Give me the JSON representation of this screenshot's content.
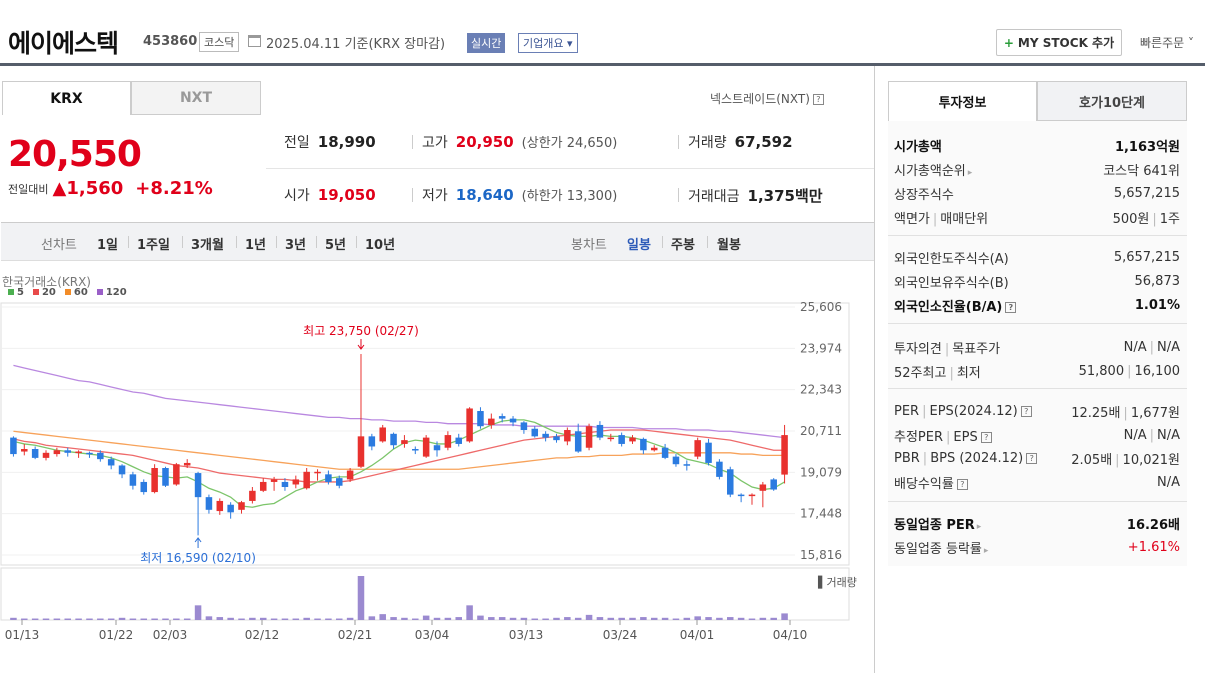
{
  "header": {
    "stock_name": "에이에스텍",
    "stock_code": "453860",
    "market": "코스닥",
    "date_text": "2025.04.11  기준(KRX 장마감)",
    "realtime": "실시간",
    "company_overview": "기업개요 ▾",
    "mystock": "MY STOCK 추가",
    "mystock_plus": "+",
    "quick_order": "빠른주문 ˅"
  },
  "tabs": {
    "krx": "KRX",
    "nxt": "NXT"
  },
  "nextrade": "넥스트레이드(NXT)",
  "price": {
    "current": "20,550",
    "change_label": "전일대비",
    "change_amount": "▲1,560",
    "change_rate": "+8.21%"
  },
  "quotes": {
    "prev_label": "전일",
    "prev_val": "18,990",
    "open_label": "시가",
    "open_val": "19,050",
    "high_label": "고가",
    "high_val": "20,950",
    "upper_limit": "(상한가 24,650)",
    "low_label": "저가",
    "low_val": "18,640",
    "lower_limit": "(하한가 13,300)",
    "volume_label": "거래량",
    "volume_val": "67,592",
    "amount_label": "거래대금",
    "amount_val": "1,375",
    "amount_unit": "백만"
  },
  "toolbar": {
    "line_chart": "선차트",
    "periods": [
      "1일",
      "1주일",
      "3개월",
      "1년",
      "3년",
      "5년",
      "10년"
    ],
    "candle_chart": "봉차트",
    "candles": [
      "일봉",
      "주봉",
      "월봉"
    ]
  },
  "chart_source": "한국거래소(KRX)",
  "legend": [
    {
      "label": "5",
      "color": "#4caf50"
    },
    {
      "label": "20",
      "color": "#e84a4a"
    },
    {
      "label": "60",
      "color": "#f28c28"
    },
    {
      "label": "120",
      "color": "#9a5fc8"
    }
  ],
  "chart_data": {
    "type": "candlestick",
    "y_ticks": [
      "25,606",
      "23,974",
      "22,343",
      "20,711",
      "19,079",
      "17,448",
      "15,816"
    ],
    "ylim": [
      15816,
      25606
    ],
    "x_ticks": [
      "01/13",
      "01/22",
      "02/03",
      "02/12",
      "02/21",
      "03/04",
      "03/13",
      "03/24",
      "04/01",
      "04/10"
    ],
    "annotations": {
      "high": "최고 23,750 (02/27)",
      "low": "최저 16,590 (02/10)"
    },
    "volume_label": "거래량",
    "candles": [
      [
        20450,
        19800,
        20500,
        19700
      ],
      [
        19900,
        20000,
        20200,
        19750
      ],
      [
        20000,
        19650,
        20100,
        19600
      ],
      [
        19650,
        19850,
        19950,
        19550
      ],
      [
        19800,
        19950,
        20050,
        19700
      ],
      [
        19950,
        19850,
        20050,
        19700
      ],
      [
        19850,
        19900,
        19950,
        19650
      ],
      [
        19850,
        19800,
        19900,
        19650
      ],
      [
        19850,
        19600,
        19950,
        19500
      ],
      [
        19600,
        19350,
        19700,
        19200
      ],
      [
        19350,
        19000,
        19400,
        18850
      ],
      [
        19000,
        18550,
        19100,
        18400
      ],
      [
        18700,
        18300,
        18800,
        18200
      ],
      [
        18300,
        19250,
        19400,
        18250
      ],
      [
        19250,
        18550,
        19300,
        18500
      ],
      [
        18600,
        19400,
        19450,
        18550
      ],
      [
        19350,
        19450,
        19600,
        19250
      ],
      [
        19050,
        18100,
        19100,
        16590
      ],
      [
        18100,
        17600,
        18200,
        17450
      ],
      [
        17550,
        17950,
        18050,
        17400
      ],
      [
        17800,
        17500,
        17900,
        17250
      ],
      [
        17600,
        17900,
        17950,
        17450
      ],
      [
        17950,
        18350,
        18500,
        17850
      ],
      [
        18350,
        18700,
        18850,
        18300
      ],
      [
        18700,
        18800,
        18900,
        18350
      ],
      [
        18700,
        18500,
        18850,
        18350
      ],
      [
        18600,
        18800,
        18950,
        18450
      ],
      [
        18450,
        19100,
        19250,
        18400
      ],
      [
        19050,
        19100,
        19200,
        18750
      ],
      [
        19000,
        18700,
        19150,
        18600
      ],
      [
        18850,
        18550,
        18950,
        18450
      ],
      [
        18800,
        19150,
        19250,
        18700
      ],
      [
        19300,
        20500,
        23750,
        19250
      ],
      [
        20500,
        20100,
        20600,
        19950
      ],
      [
        20300,
        20850,
        20950,
        20250
      ],
      [
        20600,
        20150,
        20650,
        20000
      ],
      [
        20200,
        20350,
        20550,
        20050
      ],
      [
        20000,
        19950,
        20100,
        19800
      ],
      [
        19700,
        20450,
        20550,
        19650
      ],
      [
        20150,
        19950,
        20300,
        19700
      ],
      [
        20050,
        20550,
        20700,
        19950
      ],
      [
        20450,
        20200,
        20600,
        20100
      ],
      [
        20300,
        21600,
        21650,
        20250
      ],
      [
        21500,
        20900,
        21650,
        20800
      ],
      [
        20950,
        21200,
        21400,
        20800
      ],
      [
        21300,
        21200,
        21400,
        21050
      ],
      [
        21200,
        21050,
        21300,
        20900
      ],
      [
        21050,
        20750,
        21100,
        20600
      ],
      [
        20800,
        20500,
        20900,
        20450
      ],
      [
        20600,
        20450,
        20700,
        20300
      ],
      [
        20500,
        20350,
        20600,
        20250
      ],
      [
        20300,
        20750,
        20850,
        20150
      ],
      [
        20700,
        19900,
        21000,
        19850
      ],
      [
        20050,
        20900,
        21000,
        19950
      ],
      [
        20950,
        20450,
        21100,
        20350
      ],
      [
        20400,
        20450,
        20600,
        20300
      ],
      [
        20550,
        20200,
        20650,
        20100
      ],
      [
        20300,
        20450,
        20550,
        20200
      ],
      [
        20400,
        19950,
        20450,
        19800
      ],
      [
        19950,
        20050,
        20150,
        19900
      ],
      [
        20050,
        19650,
        20200,
        19600
      ],
      [
        19700,
        19400,
        19800,
        19300
      ],
      [
        19400,
        19350,
        19550,
        19150
      ],
      [
        19700,
        20350,
        20450,
        19600
      ],
      [
        20250,
        19450,
        20400,
        19350
      ],
      [
        19500,
        18900,
        19600,
        18800
      ],
      [
        19200,
        18200,
        19300,
        18100
      ],
      [
        18200,
        18150,
        18250,
        17900
      ],
      [
        18150,
        18200,
        18250,
        17800
      ],
      [
        18350,
        18600,
        18700,
        17700
      ],
      [
        18800,
        18400,
        18850,
        18350
      ],
      [
        18990,
        20550,
        20950,
        18640
      ]
    ],
    "volumes": [
      3,
      2,
      2,
      2,
      2,
      2,
      2,
      2,
      2,
      2,
      3,
      2,
      2,
      2,
      2,
      2,
      2,
      20,
      5,
      4,
      3,
      2,
      3,
      3,
      2,
      2,
      2,
      3,
      2,
      2,
      2,
      3,
      60,
      5,
      8,
      4,
      3,
      2,
      6,
      3,
      3,
      4,
      20,
      6,
      4,
      4,
      3,
      3,
      2,
      2,
      3,
      4,
      3,
      7,
      4,
      3,
      3,
      3,
      4,
      3,
      3,
      2,
      3,
      5,
      4,
      3,
      4,
      3,
      2,
      3,
      3,
      9
    ],
    "ma5": [
      20300,
      20200,
      20150,
      20050,
      19950,
      19900,
      19850,
      19800,
      19750,
      19650,
      19500,
      19300,
      19100,
      18950,
      18900,
      18850,
      18900,
      18700,
      18450,
      18300,
      18100,
      17750,
      17700,
      17800,
      17850,
      18100,
      18350,
      18500,
      18700,
      18850,
      18900,
      18900,
      19100,
      19350,
      19650,
      20000,
      20250,
      20350,
      20300,
      20200,
      20200,
      20350,
      20550,
      20750,
      20950,
      21100,
      21150,
      21150,
      21050,
      20850,
      20650,
      20550,
      20500,
      20500,
      20550,
      20500,
      20500,
      20450,
      20350,
      20200,
      20050,
      19850,
      19600,
      19500,
      19400,
      19200,
      19050,
      18750,
      18500,
      18400,
      18450,
      18700
    ],
    "ma20": [
      20400,
      20300,
      20250,
      20150,
      20100,
      20050,
      20000,
      19950,
      19900,
      19850,
      19800,
      19750,
      19650,
      19550,
      19450,
      19350,
      19300,
      19250,
      19150,
      19050,
      19000,
      18950,
      18900,
      18850,
      18800,
      18800,
      18750,
      18700,
      18700,
      18700,
      18700,
      18750,
      18850,
      18950,
      19050,
      19150,
      19250,
      19350,
      19450,
      19550,
      19650,
      19750,
      19850,
      19950,
      20050,
      20150,
      20250,
      20350,
      20400,
      20450,
      20500,
      20550,
      20600,
      20650,
      20700,
      20750,
      20750,
      20750,
      20750,
      20700,
      20650,
      20600,
      20550,
      20500,
      20450,
      20400,
      20350,
      20250,
      20150,
      20050,
      19950,
      19950
    ],
    "ma60": [
      20700,
      20650,
      20600,
      20550,
      20500,
      20450,
      20400,
      20350,
      20300,
      20250,
      20200,
      20150,
      20100,
      20050,
      20000,
      19950,
      19900,
      19850,
      19800,
      19750,
      19700,
      19650,
      19600,
      19550,
      19500,
      19450,
      19400,
      19350,
      19300,
      19250,
      19200,
      19200,
      19200,
      19200,
      19200,
      19200,
      19200,
      19200,
      19200,
      19200,
      19200,
      19200,
      19250,
      19300,
      19350,
      19400,
      19450,
      19500,
      19550,
      19600,
      19650,
      19650,
      19700,
      19700,
      19750,
      19750,
      19750,
      19800,
      19800,
      19800,
      19850,
      19850,
      19850,
      19850,
      19850,
      19850,
      19850,
      19800,
      19800,
      19750,
      19750,
      19750
    ],
    "ma120": [
      23300,
      23200,
      23100,
      23000,
      22900,
      22800,
      22700,
      22650,
      22550,
      22450,
      22350,
      22250,
      22200,
      22100,
      22000,
      21950,
      21900,
      21850,
      21800,
      21750,
      21700,
      21650,
      21600,
      21550,
      21500,
      21450,
      21400,
      21350,
      21300,
      21250,
      21250,
      21200,
      21200,
      21150,
      21150,
      21100,
      21100,
      21100,
      21050,
      21050,
      21000,
      21000,
      21000,
      21000,
      20950,
      20950,
      20950,
      20900,
      20900,
      20900,
      20900,
      20900,
      20900,
      20900,
      20850,
      20850,
      20850,
      20850,
      20800,
      20800,
      20800,
      20800,
      20750,
      20750,
      20750,
      20700,
      20700,
      20650,
      20600,
      20550,
      20500,
      20450
    ]
  },
  "right_tabs": {
    "invest": "투자정보",
    "hoga": "호가10단계"
  },
  "invest": {
    "g1": [
      {
        "label": "시가총액",
        "value": "1,163억원"
      },
      {
        "label": "시가총액순위",
        "value": "코스닥 641위"
      },
      {
        "label": "상장주식수",
        "value": "5,657,215"
      },
      {
        "label": "액면가",
        "label2": "매매단위",
        "value": "500원",
        "value2": "1주"
      }
    ],
    "g2": [
      {
        "label": "외국인한도주식수(A)",
        "value": "5,657,215"
      },
      {
        "label": "외국인보유주식수(B)",
        "value": "56,873"
      },
      {
        "label": "외국인소진율(B/A)",
        "value": "1.01%"
      }
    ],
    "g3": [
      {
        "label": "투자의견",
        "label2": "목표주가",
        "value": "N/A",
        "value2": "N/A"
      },
      {
        "label": "52주최고",
        "label2": "최저",
        "value": "51,800",
        "value2": "16,100"
      }
    ],
    "g4": [
      {
        "label": "PER",
        "label2": "EPS(2024.12)",
        "value": "12.25배",
        "value2": "1,677원"
      },
      {
        "label": "추정PER",
        "label2": "EPS",
        "value": "N/A",
        "value2": "N/A"
      },
      {
        "label": "PBR",
        "label2": "BPS (2024.12)",
        "value": "2.05배",
        "value2": "10,021원"
      },
      {
        "label": "배당수익률",
        "value": "N/A"
      }
    ],
    "g5": [
      {
        "label": "동일업종 PER",
        "value": "16.26배"
      },
      {
        "label": "동일업종 등락률",
        "value": "+1.61%"
      }
    ]
  }
}
